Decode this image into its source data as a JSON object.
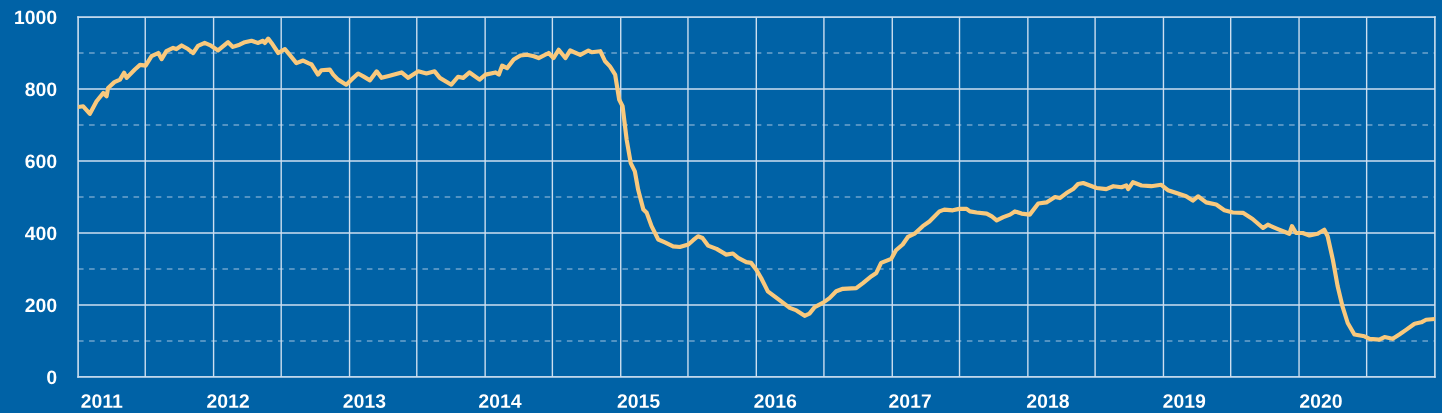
{
  "chart_data": {
    "type": "line",
    "x": [
      "2011-01-01",
      "2011-01-15",
      "2011-02-02",
      "2011-02-20",
      "2011-03-10",
      "2011-03-19",
      "2011-03-23",
      "2011-04-09",
      "2011-04-24",
      "2011-05-05",
      "2011-05-12",
      "2011-06-03",
      "2011-06-17",
      "2011-07-02",
      "2011-07-18",
      "2011-08-05",
      "2011-08-14",
      "2011-08-27",
      "2011-09-14",
      "2011-09-23",
      "2011-10-07",
      "2011-10-24",
      "2011-11-07",
      "2011-11-20",
      "2011-12-08",
      "2011-12-22",
      "2012-01-13",
      "2012-02-09",
      "2012-02-22",
      "2012-03-11",
      "2012-03-25",
      "2012-04-12",
      "2012-04-30",
      "2012-05-13",
      "2012-05-18",
      "2012-05-27",
      "2012-06-05",
      "2012-06-23",
      "2012-07-11",
      "2012-07-24",
      "2012-08-11",
      "2012-08-29",
      "2012-09-12",
      "2012-09-21",
      "2012-10-08",
      "2012-10-17",
      "2012-11-09",
      "2012-11-18",
      "2012-12-01",
      "2012-12-23",
      "2013-01-06",
      "2013-01-24",
      "2013-02-07",
      "2013-02-25",
      "2013-03-15",
      "2013-03-28",
      "2013-04-19",
      "2013-05-21",
      "2013-06-08",
      "2013-07-05",
      "2013-07-27",
      "2013-08-18",
      "2013-09-01",
      "2013-10-02",
      "2013-10-20",
      "2013-11-03",
      "2013-11-20",
      "2013-12-17",
      "2014-01-02",
      "2014-01-29",
      "2014-02-07",
      "2014-02-16",
      "2014-03-01",
      "2014-03-19",
      "2014-04-06",
      "2014-04-24",
      "2014-05-12",
      "2014-05-25",
      "2014-06-21",
      "2014-07-04",
      "2014-07-18",
      "2014-08-05",
      "2014-08-18",
      "2014-09-14",
      "2014-10-06",
      "2014-10-15",
      "2014-11-07",
      "2014-11-20",
      "2014-12-03",
      "2014-12-17",
      "2014-12-28",
      "2015-01-06",
      "2015-01-17",
      "2015-01-28",
      "2015-02-08",
      "2015-02-17",
      "2015-03-03",
      "2015-03-12",
      "2015-03-25",
      "2015-04-12",
      "2015-04-30",
      "2015-05-22",
      "2015-06-09",
      "2015-07-02",
      "2015-07-15",
      "2015-07-28",
      "2015-08-09",
      "2015-08-24",
      "2015-09-16",
      "2015-10-12",
      "2015-10-30",
      "2015-11-13",
      "2015-12-05",
      "2015-12-18",
      "2016-01-01",
      "2016-01-14",
      "2016-02-01",
      "2016-02-19",
      "2016-03-08",
      "2016-03-31",
      "2016-04-18",
      "2016-05-10",
      "2016-05-23",
      "2016-06-06",
      "2016-06-28",
      "2016-07-16",
      "2016-08-03",
      "2016-08-21",
      "2016-09-26",
      "2016-10-14",
      "2016-11-06",
      "2016-11-19",
      "2016-12-02",
      "2016-12-29",
      "2017-01-11",
      "2017-01-29",
      "2017-02-12",
      "2017-03-02",
      "2017-03-24",
      "2017-04-11",
      "2017-05-08",
      "2017-05-21",
      "2017-06-13",
      "2017-06-30",
      "2017-07-20",
      "2017-07-29",
      "2017-08-16",
      "2017-09-12",
      "2017-09-26",
      "2017-10-09",
      "2017-10-27",
      "2017-11-14",
      "2017-11-27",
      "2017-12-15",
      "2018-01-06",
      "2018-01-29",
      "2018-02-20",
      "2018-03-15",
      "2018-03-28",
      "2018-04-15",
      "2018-05-03",
      "2018-05-16",
      "2018-05-30",
      "2018-06-17",
      "2018-07-05",
      "2018-07-31",
      "2018-08-19",
      "2018-09-10",
      "2018-09-23",
      "2018-09-28",
      "2018-10-11",
      "2018-11-03",
      "2018-11-29",
      "2018-12-26",
      "2019-01-13",
      "2019-02-05",
      "2019-03-03",
      "2019-03-21",
      "2019-04-04",
      "2019-04-26",
      "2019-05-23",
      "2019-06-14",
      "2019-07-07",
      "2019-08-03",
      "2019-08-29",
      "2019-09-26",
      "2019-10-09",
      "2019-11-05",
      "2019-12-06",
      "2019-12-13",
      "2019-12-24",
      "2020-01-11",
      "2020-01-29",
      "2020-02-20",
      "2020-03-09",
      "2020-03-18",
      "2020-04-01",
      "2020-04-14",
      "2020-04-27",
      "2020-05-11",
      "2020-05-29",
      "2020-06-25",
      "2020-07-09",
      "2020-08-04",
      "2020-08-18",
      "2020-09-09",
      "2020-09-27",
      "2020-10-15",
      "2020-11-07",
      "2020-11-25",
      "2020-12-08",
      "2020-12-31"
    ],
    "series": [
      {
        "color": "#f9c97d",
        "values": [
          750,
          752,
          731,
          766,
          789,
          780,
          803,
          819,
          826,
          845,
          831,
          854,
          867,
          865,
          891,
          900,
          883,
          905,
          914,
          911,
          921,
          911,
          900,
          920,
          928,
          922,
          907,
          930,
          917,
          923,
          930,
          934,
          928,
          934,
          928,
          940,
          928,
          900,
          911,
          895,
          872,
          879,
          872,
          868,
          840,
          852,
          854,
          840,
          826,
          812,
          826,
          843,
          835,
          824,
          849,
          831,
          837,
          846,
          831,
          849,
          843,
          849,
          831,
          812,
          834,
          831,
          846,
          826,
          840,
          846,
          840,
          865,
          858,
          882,
          893,
          895,
          891,
          886,
          900,
          886,
          909,
          886,
          907,
          895,
          907,
          902,
          905,
          877,
          863,
          840,
          770,
          752,
          659,
          594,
          571,
          520,
          465,
          456,
          419,
          382,
          374,
          363,
          361,
          368,
          380,
          391,
          386,
          365,
          356,
          340,
          343,
          331,
          319,
          317,
          298,
          275,
          238,
          224,
          210,
          192,
          185,
          170,
          176,
          194,
          206,
          219,
          238,
          245,
          247,
          261,
          280,
          289,
          317,
          328,
          352,
          368,
          389,
          398,
          419,
          432,
          460,
          465,
          463,
          467,
          467,
          460,
          457,
          454,
          446,
          435,
          444,
          451,
          460,
          454,
          451,
          482,
          485,
          500,
          497,
          511,
          522,
          536,
          539,
          532,
          525,
          522,
          530,
          527,
          532,
          522,
          541,
          532,
          530,
          534,
          519,
          511,
          502,
          490,
          502,
          485,
          479,
          463,
          457,
          456,
          439,
          414,
          423,
          411,
          398,
          419,
          400,
          400,
          393,
          398,
          409,
          391,
          326,
          252,
          196,
          150,
          118,
          113,
          106,
          104,
          111,
          106,
          118,
          131,
          148,
          152,
          159,
          161
        ]
      }
    ],
    "xlim": [
      "2011-01-01",
      "2021-01-01"
    ],
    "xticks": [
      {
        "value": "2011-01-01",
        "label": null
      },
      {
        "value": "2011-07-01",
        "label": null
      },
      {
        "value": "2012-01-01",
        "label": null
      },
      {
        "value": "2012-07-01",
        "label": null
      },
      {
        "value": "2013-01-01",
        "label": null
      },
      {
        "value": "2013-07-01",
        "label": null
      },
      {
        "value": "2014-01-01",
        "label": null
      },
      {
        "value": "2014-07-01",
        "label": null
      },
      {
        "value": "2015-01-01",
        "label": null
      },
      {
        "value": "2015-07-01",
        "label": null
      },
      {
        "value": "2016-01-01",
        "label": null
      },
      {
        "value": "2016-07-01",
        "label": null
      },
      {
        "value": "2017-01-01",
        "label": null
      },
      {
        "value": "2017-07-01",
        "label": null
      },
      {
        "value": "2018-01-01",
        "label": null
      },
      {
        "value": "2018-07-01",
        "label": null
      },
      {
        "value": "2019-01-01",
        "label": null
      },
      {
        "value": "2019-07-01",
        "label": null
      },
      {
        "value": "2020-01-01",
        "label": null
      },
      {
        "value": "2020-07-01",
        "label": null
      },
      {
        "value": "2021-01-01",
        "label": null
      },
      {
        "value": "2011-03-06",
        "label": "2011"
      },
      {
        "value": "2012-02-09",
        "label": "2012"
      },
      {
        "value": "2013-02-10",
        "label": "2013"
      },
      {
        "value": "2014-02-10",
        "label": "2014"
      },
      {
        "value": "2015-02-18",
        "label": "2015"
      },
      {
        "value": "2016-02-21",
        "label": "2016"
      },
      {
        "value": "2017-02-18",
        "label": "2017"
      },
      {
        "value": "2018-02-24",
        "label": "2018"
      },
      {
        "value": "2019-02-26",
        "label": "2019"
      },
      {
        "value": "2020-02-29",
        "label": "2020"
      }
    ],
    "ylim": [
      0,
      1000
    ],
    "yticks": [
      0,
      200,
      400,
      600,
      800,
      1000,
      {
        "value": 100,
        "label": null
      },
      {
        "value": 300,
        "label": null
      },
      {
        "value": 500,
        "label": null
      },
      {
        "value": 700,
        "label": null
      },
      {
        "value": 900,
        "label": null
      }
    ],
    "grid": true
  }
}
